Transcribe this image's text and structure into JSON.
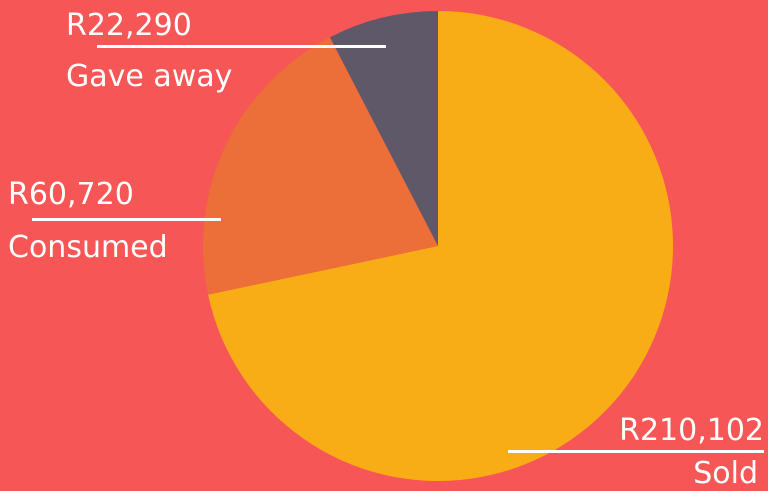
{
  "chart_data": {
    "type": "pie",
    "slices": [
      {
        "label": "Sold",
        "value": 210102,
        "value_label": "R210,102",
        "color": "#F8AD16"
      },
      {
        "label": "Consumed",
        "value": 60720,
        "value_label": "R60,720",
        "color": "#EC6E38"
      },
      {
        "label": "Gave away",
        "value": 22290,
        "value_label": "R22,290",
        "color": "#5E5868"
      }
    ]
  },
  "colors": {
    "background": "#F75656",
    "label_text": "#FFFFFF"
  }
}
